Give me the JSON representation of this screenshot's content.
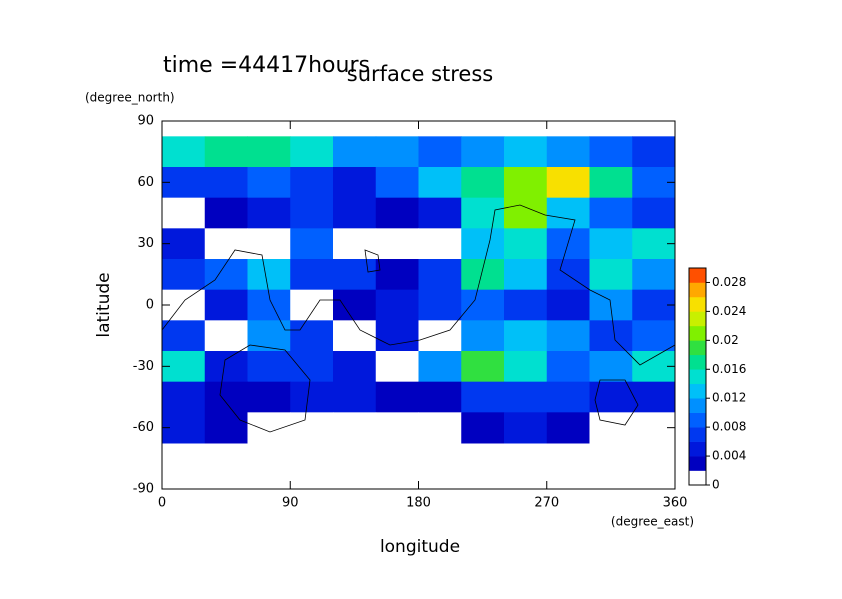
{
  "chart_data": {
    "type": "contour",
    "title": "surface stress",
    "subtitle": "time =44417hours",
    "x_label": "longitude",
    "x_unit": "(degree_east)",
    "y_label": "latitude",
    "y_unit": "(degree_north)",
    "x": [
      15,
      45,
      75,
      105,
      135,
      165,
      195,
      225,
      255,
      285,
      315,
      345
    ],
    "y": [
      75,
      60,
      45,
      30,
      15,
      0,
      -15,
      -30,
      -45,
      -60
    ],
    "z": [
      [
        0.014,
        0.016,
        0.016,
        0.014,
        0.01,
        0.01,
        0.008,
        0.01,
        0.012,
        0.01,
        0.008,
        0.006
      ],
      [
        0.006,
        0.006,
        0.008,
        0.006,
        0.004,
        0.008,
        0.012,
        0.016,
        0.02,
        0.024,
        0.016,
        0.008
      ],
      [
        0,
        0.002,
        0.004,
        0.006,
        0.004,
        0.002,
        0.004,
        0.014,
        0.02,
        0.012,
        0.008,
        0.006
      ],
      [
        0.004,
        0,
        0,
        0.008,
        0,
        0,
        0,
        0.012,
        0.014,
        0.008,
        0.012,
        0.014
      ],
      [
        0.006,
        0.008,
        0.012,
        0.006,
        0.006,
        0.002,
        0.006,
        0.016,
        0.012,
        0.006,
        0.014,
        0.01
      ],
      [
        0,
        0.004,
        0.008,
        0,
        0.002,
        0.004,
        0.006,
        0.008,
        0.006,
        0.004,
        0.01,
        0.006
      ],
      [
        0.006,
        0,
        0.01,
        0.006,
        0,
        0.004,
        0,
        0.01,
        0.012,
        0.01,
        0.006,
        0.008
      ],
      [
        0.014,
        0.004,
        0.006,
        0.006,
        0.004,
        0,
        0.01,
        0.018,
        0.014,
        0.008,
        0.01,
        0.014
      ],
      [
        0.004,
        0.002,
        0.002,
        0.004,
        0.004,
        0.002,
        0.002,
        0.006,
        0.006,
        0.006,
        0.004,
        0.004
      ],
      [
        0.004,
        0.002,
        0,
        0,
        0,
        0,
        0,
        0.002,
        0.004,
        0.002,
        0,
        0
      ]
    ],
    "xlim": [
      0,
      360
    ],
    "xticks": [
      0,
      90,
      180,
      270,
      360
    ],
    "ylim": [
      -90,
      90
    ],
    "yticks": [
      -90,
      -60,
      -30,
      0,
      30,
      60,
      90
    ],
    "zlim": [
      0,
      0.03
    ],
    "zticks": [
      0,
      0.004,
      0.008,
      0.012,
      0.016,
      0.02,
      0.024,
      0.028
    ],
    "colors": [
      "#ffffff",
      "#0000c0",
      "#0018dc",
      "#0038f0",
      "#0060ff",
      "#0090ff",
      "#00c0f8",
      "#00e0d0",
      "#00e090",
      "#30e040",
      "#80f000",
      "#c8f000",
      "#f8e000",
      "#ffa800",
      "#ff5000"
    ]
  }
}
